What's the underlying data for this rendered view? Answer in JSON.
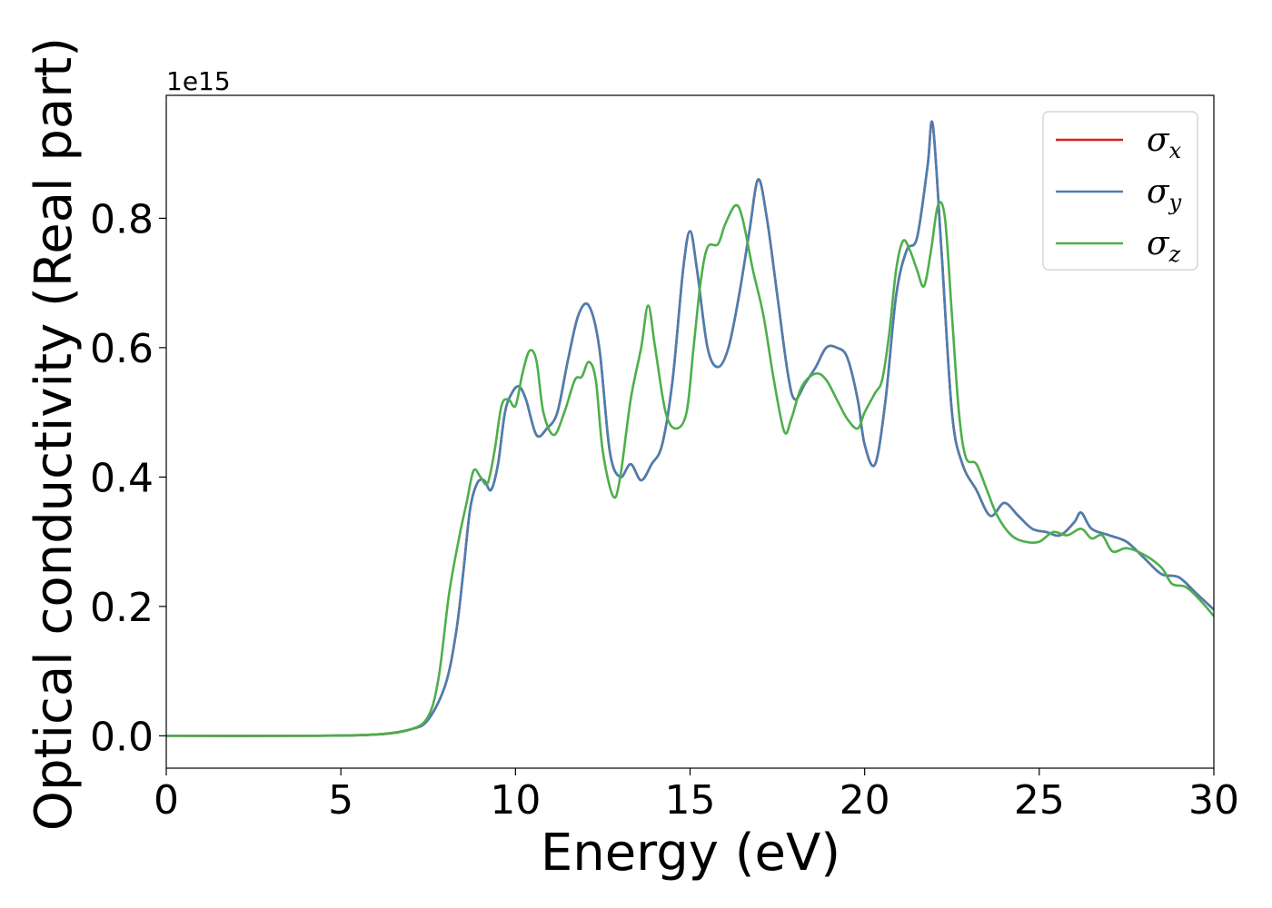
{
  "chart_data": {
    "type": "line",
    "xlabel": "Energy (eV)",
    "ylabel": "Optical conductivity (Real part)",
    "y_offset_label": "1e15",
    "xlim": [
      0,
      30
    ],
    "ylim": [
      -0.05,
      0.99
    ],
    "xticks": [
      0,
      5,
      10,
      15,
      20,
      25,
      30
    ],
    "xtick_labels": [
      "0",
      "5",
      "10",
      "15",
      "20",
      "25",
      "30"
    ],
    "yticks": [
      0.0,
      0.2,
      0.4,
      0.6,
      0.8
    ],
    "ytick_labels": [
      "0.0",
      "0.2",
      "0.4",
      "0.6",
      "0.8"
    ],
    "grid": false,
    "legend_position": "top-right",
    "series": [
      {
        "symbol": "σ",
        "subscript": "x",
        "color": "#e41a1c",
        "points": [
          [
            0,
            0
          ],
          [
            4,
            0
          ],
          [
            6,
            0.002
          ],
          [
            7,
            0.01
          ],
          [
            7.5,
            0.025
          ],
          [
            8,
            0.08
          ],
          [
            8.3,
            0.16
          ],
          [
            8.5,
            0.25
          ],
          [
            8.7,
            0.35
          ],
          [
            8.9,
            0.39
          ],
          [
            9.1,
            0.395
          ],
          [
            9.3,
            0.38
          ],
          [
            9.5,
            0.42
          ],
          [
            9.7,
            0.5
          ],
          [
            9.9,
            0.53
          ],
          [
            10.1,
            0.54
          ],
          [
            10.3,
            0.52
          ],
          [
            10.6,
            0.465
          ],
          [
            10.9,
            0.475
          ],
          [
            11.2,
            0.5
          ],
          [
            11.5,
            0.58
          ],
          [
            11.8,
            0.65
          ],
          [
            12.1,
            0.665
          ],
          [
            12.4,
            0.6
          ],
          [
            12.7,
            0.44
          ],
          [
            13.0,
            0.4
          ],
          [
            13.3,
            0.42
          ],
          [
            13.6,
            0.395
          ],
          [
            13.9,
            0.42
          ],
          [
            14.2,
            0.45
          ],
          [
            14.5,
            0.55
          ],
          [
            14.8,
            0.72
          ],
          [
            15.0,
            0.78
          ],
          [
            15.2,
            0.72
          ],
          [
            15.5,
            0.6
          ],
          [
            15.8,
            0.57
          ],
          [
            16.1,
            0.6
          ],
          [
            16.4,
            0.68
          ],
          [
            16.7,
            0.78
          ],
          [
            16.95,
            0.86
          ],
          [
            17.2,
            0.8
          ],
          [
            17.5,
            0.68
          ],
          [
            17.8,
            0.56
          ],
          [
            18.0,
            0.52
          ],
          [
            18.3,
            0.545
          ],
          [
            18.6,
            0.57
          ],
          [
            18.9,
            0.6
          ],
          [
            19.2,
            0.6
          ],
          [
            19.5,
            0.585
          ],
          [
            19.8,
            0.52
          ],
          [
            20.0,
            0.45
          ],
          [
            20.3,
            0.42
          ],
          [
            20.6,
            0.52
          ],
          [
            20.9,
            0.68
          ],
          [
            21.2,
            0.75
          ],
          [
            21.5,
            0.77
          ],
          [
            21.8,
            0.88
          ],
          [
            21.95,
            0.945
          ],
          [
            22.2,
            0.75
          ],
          [
            22.5,
            0.5
          ],
          [
            22.8,
            0.42
          ],
          [
            23.2,
            0.38
          ],
          [
            23.6,
            0.34
          ],
          [
            24.0,
            0.36
          ],
          [
            24.4,
            0.34
          ],
          [
            24.8,
            0.32
          ],
          [
            25.2,
            0.315
          ],
          [
            25.6,
            0.31
          ],
          [
            26.0,
            0.33
          ],
          [
            26.2,
            0.345
          ],
          [
            26.5,
            0.32
          ],
          [
            27.0,
            0.31
          ],
          [
            27.5,
            0.3
          ],
          [
            28.0,
            0.275
          ],
          [
            28.5,
            0.25
          ],
          [
            29.0,
            0.245
          ],
          [
            29.5,
            0.22
          ],
          [
            30.0,
            0.195
          ]
        ]
      },
      {
        "symbol": "σ",
        "subscript": "y",
        "color": "#4a7fb0",
        "points": [
          [
            0,
            0
          ],
          [
            4,
            0
          ],
          [
            6,
            0.002
          ],
          [
            7,
            0.01
          ],
          [
            7.5,
            0.025
          ],
          [
            8,
            0.08
          ],
          [
            8.3,
            0.16
          ],
          [
            8.5,
            0.25
          ],
          [
            8.7,
            0.35
          ],
          [
            8.9,
            0.39
          ],
          [
            9.1,
            0.395
          ],
          [
            9.3,
            0.38
          ],
          [
            9.5,
            0.42
          ],
          [
            9.7,
            0.5
          ],
          [
            9.9,
            0.53
          ],
          [
            10.1,
            0.54
          ],
          [
            10.3,
            0.52
          ],
          [
            10.6,
            0.465
          ],
          [
            10.9,
            0.475
          ],
          [
            11.2,
            0.5
          ],
          [
            11.5,
            0.58
          ],
          [
            11.8,
            0.65
          ],
          [
            12.1,
            0.665
          ],
          [
            12.4,
            0.6
          ],
          [
            12.7,
            0.44
          ],
          [
            13.0,
            0.4
          ],
          [
            13.3,
            0.42
          ],
          [
            13.6,
            0.395
          ],
          [
            13.9,
            0.42
          ],
          [
            14.2,
            0.45
          ],
          [
            14.5,
            0.55
          ],
          [
            14.8,
            0.72
          ],
          [
            15.0,
            0.78
          ],
          [
            15.2,
            0.72
          ],
          [
            15.5,
            0.6
          ],
          [
            15.8,
            0.57
          ],
          [
            16.1,
            0.6
          ],
          [
            16.4,
            0.68
          ],
          [
            16.7,
            0.78
          ],
          [
            16.95,
            0.86
          ],
          [
            17.2,
            0.8
          ],
          [
            17.5,
            0.68
          ],
          [
            17.8,
            0.56
          ],
          [
            18.0,
            0.52
          ],
          [
            18.3,
            0.545
          ],
          [
            18.6,
            0.57
          ],
          [
            18.9,
            0.6
          ],
          [
            19.2,
            0.6
          ],
          [
            19.5,
            0.585
          ],
          [
            19.8,
            0.52
          ],
          [
            20.0,
            0.45
          ],
          [
            20.3,
            0.42
          ],
          [
            20.6,
            0.52
          ],
          [
            20.9,
            0.68
          ],
          [
            21.2,
            0.75
          ],
          [
            21.5,
            0.77
          ],
          [
            21.8,
            0.88
          ],
          [
            21.95,
            0.945
          ],
          [
            22.2,
            0.75
          ],
          [
            22.5,
            0.5
          ],
          [
            22.8,
            0.42
          ],
          [
            23.2,
            0.38
          ],
          [
            23.6,
            0.34
          ],
          [
            24.0,
            0.36
          ],
          [
            24.4,
            0.34
          ],
          [
            24.8,
            0.32
          ],
          [
            25.2,
            0.315
          ],
          [
            25.6,
            0.31
          ],
          [
            26.0,
            0.33
          ],
          [
            26.2,
            0.345
          ],
          [
            26.5,
            0.32
          ],
          [
            27.0,
            0.31
          ],
          [
            27.5,
            0.3
          ],
          [
            28.0,
            0.275
          ],
          [
            28.5,
            0.25
          ],
          [
            29.0,
            0.245
          ],
          [
            29.5,
            0.22
          ],
          [
            30.0,
            0.195
          ]
        ]
      },
      {
        "symbol": "σ",
        "subscript": "z",
        "color": "#4daf4a",
        "points": [
          [
            0,
            0
          ],
          [
            4,
            0
          ],
          [
            6,
            0.002
          ],
          [
            7,
            0.01
          ],
          [
            7.5,
            0.03
          ],
          [
            7.8,
            0.09
          ],
          [
            8.1,
            0.22
          ],
          [
            8.4,
            0.31
          ],
          [
            8.6,
            0.36
          ],
          [
            8.8,
            0.41
          ],
          [
            9.0,
            0.4
          ],
          [
            9.2,
            0.39
          ],
          [
            9.4,
            0.44
          ],
          [
            9.6,
            0.51
          ],
          [
            9.8,
            0.52
          ],
          [
            10.0,
            0.51
          ],
          [
            10.2,
            0.56
          ],
          [
            10.4,
            0.595
          ],
          [
            10.6,
            0.58
          ],
          [
            10.8,
            0.5
          ],
          [
            11.1,
            0.465
          ],
          [
            11.4,
            0.5
          ],
          [
            11.7,
            0.55
          ],
          [
            11.9,
            0.555
          ],
          [
            12.1,
            0.578
          ],
          [
            12.3,
            0.55
          ],
          [
            12.5,
            0.44
          ],
          [
            12.8,
            0.37
          ],
          [
            13.0,
            0.4
          ],
          [
            13.3,
            0.52
          ],
          [
            13.6,
            0.6
          ],
          [
            13.8,
            0.665
          ],
          [
            14.0,
            0.6
          ],
          [
            14.3,
            0.5
          ],
          [
            14.6,
            0.475
          ],
          [
            14.9,
            0.5
          ],
          [
            15.1,
            0.6
          ],
          [
            15.3,
            0.7
          ],
          [
            15.5,
            0.755
          ],
          [
            15.8,
            0.76
          ],
          [
            16.0,
            0.79
          ],
          [
            16.3,
            0.82
          ],
          [
            16.5,
            0.8
          ],
          [
            16.8,
            0.72
          ],
          [
            17.1,
            0.65
          ],
          [
            17.4,
            0.55
          ],
          [
            17.7,
            0.47
          ],
          [
            17.9,
            0.49
          ],
          [
            18.2,
            0.54
          ],
          [
            18.6,
            0.56
          ],
          [
            18.9,
            0.55
          ],
          [
            19.2,
            0.52
          ],
          [
            19.5,
            0.49
          ],
          [
            19.8,
            0.475
          ],
          [
            20.0,
            0.5
          ],
          [
            20.3,
            0.53
          ],
          [
            20.5,
            0.55
          ],
          [
            20.7,
            0.62
          ],
          [
            20.9,
            0.72
          ],
          [
            21.1,
            0.765
          ],
          [
            21.3,
            0.75
          ],
          [
            21.5,
            0.72
          ],
          [
            21.7,
            0.695
          ],
          [
            21.9,
            0.75
          ],
          [
            22.1,
            0.82
          ],
          [
            22.3,
            0.8
          ],
          [
            22.5,
            0.65
          ],
          [
            22.7,
            0.5
          ],
          [
            22.9,
            0.43
          ],
          [
            23.2,
            0.42
          ],
          [
            23.5,
            0.38
          ],
          [
            23.8,
            0.34
          ],
          [
            24.2,
            0.31
          ],
          [
            24.6,
            0.3
          ],
          [
            25.0,
            0.3
          ],
          [
            25.4,
            0.315
          ],
          [
            25.8,
            0.31
          ],
          [
            26.2,
            0.32
          ],
          [
            26.5,
            0.305
          ],
          [
            26.8,
            0.31
          ],
          [
            27.1,
            0.285
          ],
          [
            27.5,
            0.29
          ],
          [
            28.0,
            0.28
          ],
          [
            28.5,
            0.26
          ],
          [
            28.8,
            0.235
          ],
          [
            29.2,
            0.23
          ],
          [
            29.6,
            0.21
          ],
          [
            30.0,
            0.185
          ]
        ]
      }
    ]
  }
}
